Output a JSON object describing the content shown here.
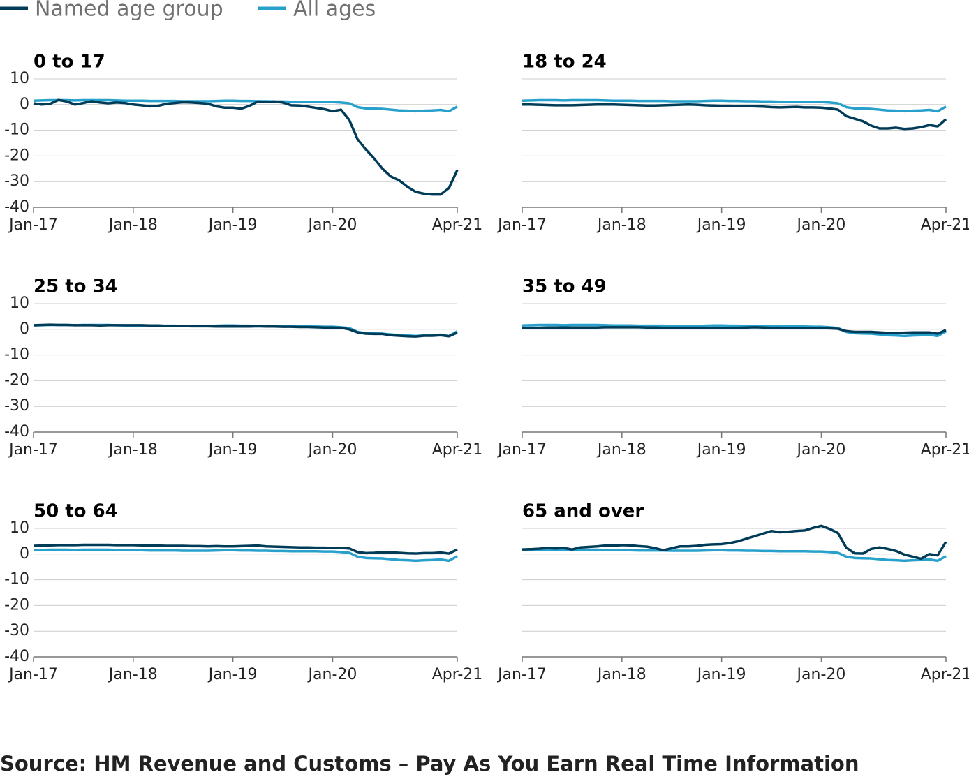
{
  "source": "Source: HM Revenue and Customs – Pay As You Earn Real Time Information",
  "chart_data": [
    {
      "type": "line",
      "title": "0 to 17",
      "ytick_labels": true,
      "categories": [
        "Jan-17",
        null,
        null,
        null,
        null,
        null,
        null,
        null,
        null,
        null,
        null,
        null,
        "Jan-18",
        null,
        null,
        null,
        null,
        null,
        null,
        null,
        null,
        null,
        null,
        null,
        "Jan-19",
        null,
        null,
        null,
        null,
        null,
        null,
        null,
        null,
        null,
        null,
        null,
        "Jan-20",
        null,
        null,
        null,
        null,
        null,
        null,
        null,
        null,
        null,
        null,
        null,
        null,
        null,
        null,
        "Apr-21"
      ],
      "ylim": [
        -40,
        10
      ],
      "yticks": [
        -40,
        -30,
        -20,
        -10,
        0,
        10
      ],
      "grid": true,
      "series": [
        {
          "name": "Named age group",
          "color": "#003c57",
          "values": [
            0.5,
            0,
            0.3,
            1.8,
            1.2,
            0,
            0.6,
            1.3,
            0.8,
            0.5,
            0.8,
            0.6,
            0,
            -0.3,
            -0.7,
            -0.5,
            0.3,
            0.6,
            0.9,
            0.8,
            0.6,
            0.3,
            -0.7,
            -1.2,
            -1.2,
            -1.6,
            -0.5,
            1.2,
            1.0,
            1.2,
            0.8,
            -0.3,
            -0.4,
            -0.8,
            -1.3,
            -1.8,
            -2.6,
            -2.0,
            -6,
            -13.5,
            -17.5,
            -21,
            -25,
            -28,
            -29.5,
            -32,
            -34,
            -34.7,
            -35,
            -35,
            -32.5,
            -25.5
          ]
        },
        {
          "name": "All ages",
          "color": "#27a0cc",
          "values": [
            1.5,
            1.6,
            1.7,
            1.7,
            1.7,
            1.6,
            1.7,
            1.7,
            1.7,
            1.7,
            1.6,
            1.5,
            1.5,
            1.5,
            1.4,
            1.4,
            1.4,
            1.4,
            1.3,
            1.3,
            1.3,
            1.3,
            1.4,
            1.5,
            1.5,
            1.4,
            1.4,
            1.3,
            1.3,
            1.2,
            1.2,
            1.1,
            1.1,
            1.1,
            1.1,
            1.0,
            1.0,
            0.8,
            0.5,
            -1,
            -1.5,
            -1.6,
            -1.7,
            -2,
            -2.3,
            -2.4,
            -2.6,
            -2.4,
            -2.3,
            -2.1,
            -2.6,
            -0.8
          ]
        }
      ]
    },
    {
      "type": "line",
      "title": "18 to 24",
      "ytick_labels": false,
      "categories": [
        "Jan-17",
        null,
        null,
        null,
        null,
        null,
        null,
        null,
        null,
        null,
        null,
        null,
        "Jan-18",
        null,
        null,
        null,
        null,
        null,
        null,
        null,
        null,
        null,
        null,
        null,
        "Jan-19",
        null,
        null,
        null,
        null,
        null,
        null,
        null,
        null,
        null,
        null,
        null,
        "Jan-20",
        null,
        null,
        null,
        null,
        null,
        null,
        null,
        null,
        null,
        null,
        null,
        null,
        null,
        null,
        "Apr-21"
      ],
      "ylim": [
        -40,
        10
      ],
      "yticks": [
        -40,
        -30,
        -20,
        -10,
        0,
        10
      ],
      "grid": true,
      "series": [
        {
          "name": "Named age group",
          "color": "#003c57",
          "values": [
            0,
            0,
            -0.1,
            -0.2,
            -0.3,
            -0.3,
            -0.3,
            -0.2,
            -0.1,
            0,
            0,
            0,
            -0.1,
            -0.2,
            -0.3,
            -0.4,
            -0.4,
            -0.3,
            -0.2,
            -0.1,
            0,
            -0.1,
            -0.3,
            -0.4,
            -0.5,
            -0.5,
            -0.6,
            -0.6,
            -0.7,
            -0.8,
            -1.0,
            -1.1,
            -1.0,
            -0.9,
            -1.1,
            -1.1,
            -1.2,
            -1.5,
            -2,
            -4.5,
            -5.5,
            -6.5,
            -8.2,
            -9.3,
            -9.3,
            -9,
            -9.5,
            -9.3,
            -8.8,
            -8,
            -8.5,
            -5.7
          ]
        },
        {
          "name": "All ages",
          "color": "#27a0cc",
          "values": [
            1.5,
            1.6,
            1.7,
            1.7,
            1.7,
            1.6,
            1.7,
            1.7,
            1.7,
            1.7,
            1.6,
            1.5,
            1.5,
            1.5,
            1.4,
            1.4,
            1.4,
            1.4,
            1.3,
            1.3,
            1.3,
            1.3,
            1.4,
            1.5,
            1.5,
            1.4,
            1.4,
            1.3,
            1.3,
            1.2,
            1.2,
            1.1,
            1.1,
            1.1,
            1.1,
            1.0,
            1.0,
            0.8,
            0.5,
            -1,
            -1.5,
            -1.6,
            -1.7,
            -2,
            -2.3,
            -2.4,
            -2.6,
            -2.4,
            -2.3,
            -2.1,
            -2.6,
            -0.8
          ]
        }
      ]
    },
    {
      "type": "line",
      "title": "25 to 34",
      "ytick_labels": true,
      "categories": [
        "Jan-17",
        null,
        null,
        null,
        null,
        null,
        null,
        null,
        null,
        null,
        null,
        null,
        "Jan-18",
        null,
        null,
        null,
        null,
        null,
        null,
        null,
        null,
        null,
        null,
        null,
        "Jan-19",
        null,
        null,
        null,
        null,
        null,
        null,
        null,
        null,
        null,
        null,
        null,
        "Jan-20",
        null,
        null,
        null,
        null,
        null,
        null,
        null,
        null,
        null,
        null,
        null,
        null,
        null,
        null,
        "Apr-21"
      ],
      "ylim": [
        -40,
        10
      ],
      "yticks": [
        -40,
        -30,
        -20,
        -10,
        0,
        10
      ],
      "grid": true,
      "series": [
        {
          "name": "Named age group",
          "color": "#003c57",
          "values": [
            1.6,
            1.7,
            1.8,
            1.7,
            1.7,
            1.6,
            1.6,
            1.6,
            1.5,
            1.6,
            1.6,
            1.6,
            1.6,
            1.6,
            1.5,
            1.5,
            1.3,
            1.3,
            1.3,
            1.2,
            1.2,
            1.2,
            1.1,
            1.1,
            1.1,
            1.1,
            1.1,
            1.2,
            1.1,
            1.1,
            1.0,
            1.0,
            0.9,
            0.9,
            0.8,
            0.7,
            0.7,
            0.6,
            0,
            -1.2,
            -1.7,
            -1.8,
            -1.8,
            -2.3,
            -2.5,
            -2.7,
            -2.8,
            -2.5,
            -2.5,
            -2.3,
            -2.7,
            -1.3
          ]
        },
        {
          "name": "All ages",
          "color": "#27a0cc",
          "values": [
            1.5,
            1.6,
            1.7,
            1.7,
            1.7,
            1.6,
            1.7,
            1.7,
            1.7,
            1.7,
            1.6,
            1.5,
            1.5,
            1.5,
            1.4,
            1.4,
            1.4,
            1.4,
            1.3,
            1.3,
            1.3,
            1.3,
            1.4,
            1.5,
            1.5,
            1.4,
            1.4,
            1.3,
            1.3,
            1.2,
            1.2,
            1.1,
            1.1,
            1.1,
            1.1,
            1.0,
            1.0,
            0.8,
            0.5,
            -1,
            -1.5,
            -1.6,
            -1.7,
            -2,
            -2.3,
            -2.4,
            -2.6,
            -2.4,
            -2.3,
            -2.1,
            -2.6,
            -0.8
          ]
        }
      ]
    },
    {
      "type": "line",
      "title": "35 to 49",
      "ytick_labels": false,
      "categories": [
        "Jan-17",
        null,
        null,
        null,
        null,
        null,
        null,
        null,
        null,
        null,
        null,
        null,
        "Jan-18",
        null,
        null,
        null,
        null,
        null,
        null,
        null,
        null,
        null,
        null,
        null,
        "Jan-19",
        null,
        null,
        null,
        null,
        null,
        null,
        null,
        null,
        null,
        null,
        null,
        "Jan-20",
        null,
        null,
        null,
        null,
        null,
        null,
        null,
        null,
        null,
        null,
        null,
        null,
        null,
        null,
        "Apr-21"
      ],
      "ylim": [
        -40,
        10
      ],
      "yticks": [
        -40,
        -30,
        -20,
        -10,
        0,
        10
      ],
      "grid": true,
      "series": [
        {
          "name": "Named age group",
          "color": "#003c57",
          "values": [
            0.5,
            0.6,
            0.6,
            0.7,
            0.7,
            0.7,
            0.7,
            0.7,
            0.7,
            0.7,
            0.8,
            0.8,
            0.8,
            0.8,
            0.8,
            0.7,
            0.7,
            0.6,
            0.6,
            0.6,
            0.6,
            0.6,
            0.6,
            0.5,
            0.5,
            0.6,
            0.6,
            0.7,
            0.8,
            0.7,
            0.6,
            0.6,
            0.5,
            0.5,
            0.5,
            0.5,
            0.5,
            0.4,
            0.2,
            -0.7,
            -1.0,
            -1.0,
            -1.0,
            -1.2,
            -1.4,
            -1.4,
            -1.3,
            -1.2,
            -1.2,
            -1.2,
            -1.7,
            -0.3
          ]
        },
        {
          "name": "All ages",
          "color": "#27a0cc",
          "values": [
            1.5,
            1.6,
            1.7,
            1.7,
            1.7,
            1.6,
            1.7,
            1.7,
            1.7,
            1.7,
            1.6,
            1.5,
            1.5,
            1.5,
            1.4,
            1.4,
            1.4,
            1.4,
            1.3,
            1.3,
            1.3,
            1.3,
            1.4,
            1.5,
            1.5,
            1.4,
            1.4,
            1.3,
            1.3,
            1.2,
            1.2,
            1.1,
            1.1,
            1.1,
            1.1,
            1.0,
            1.0,
            0.8,
            0.5,
            -1,
            -1.5,
            -1.6,
            -1.7,
            -2,
            -2.3,
            -2.4,
            -2.6,
            -2.4,
            -2.3,
            -2.1,
            -2.6,
            -0.8
          ]
        }
      ]
    },
    {
      "type": "line",
      "title": "50 to 64",
      "ytick_labels": true,
      "categories": [
        "Jan-17",
        null,
        null,
        null,
        null,
        null,
        null,
        null,
        null,
        null,
        null,
        null,
        "Jan-18",
        null,
        null,
        null,
        null,
        null,
        null,
        null,
        null,
        null,
        null,
        null,
        "Jan-19",
        null,
        null,
        null,
        null,
        null,
        null,
        null,
        null,
        null,
        null,
        null,
        "Jan-20",
        null,
        null,
        null,
        null,
        null,
        null,
        null,
        null,
        null,
        null,
        null,
        null,
        null,
        null,
        "Apr-21"
      ],
      "ylim": [
        -40,
        10
      ],
      "yticks": [
        -40,
        -30,
        -20,
        -10,
        0,
        10
      ],
      "grid": true,
      "series": [
        {
          "name": "Named age group",
          "color": "#003c57",
          "values": [
            3.2,
            3.3,
            3.4,
            3.5,
            3.5,
            3.5,
            3.6,
            3.6,
            3.6,
            3.6,
            3.5,
            3.5,
            3.5,
            3.4,
            3.3,
            3.3,
            3.2,
            3.2,
            3.2,
            3.1,
            3.1,
            3.0,
            3.1,
            3.0,
            3.0,
            3.1,
            3.2,
            3.3,
            3.0,
            2.9,
            2.8,
            2.7,
            2.6,
            2.6,
            2.5,
            2.5,
            2.4,
            2.4,
            2.2,
            0.8,
            0.4,
            0.5,
            0.7,
            0.7,
            0.5,
            0.3,
            0.2,
            0.4,
            0.4,
            0.6,
            0.2,
            1.8
          ]
        },
        {
          "name": "All ages",
          "color": "#27a0cc",
          "values": [
            1.5,
            1.6,
            1.7,
            1.7,
            1.7,
            1.6,
            1.7,
            1.7,
            1.7,
            1.7,
            1.6,
            1.5,
            1.5,
            1.5,
            1.4,
            1.4,
            1.4,
            1.4,
            1.3,
            1.3,
            1.3,
            1.3,
            1.4,
            1.5,
            1.5,
            1.4,
            1.4,
            1.3,
            1.3,
            1.2,
            1.2,
            1.1,
            1.1,
            1.1,
            1.1,
            1.0,
            1.0,
            0.8,
            0.5,
            -1,
            -1.5,
            -1.6,
            -1.7,
            -2,
            -2.3,
            -2.4,
            -2.6,
            -2.4,
            -2.3,
            -2.1,
            -2.6,
            -0.8
          ]
        }
      ]
    },
    {
      "type": "line",
      "title": "65 and over",
      "ytick_labels": false,
      "categories": [
        "Jan-17",
        null,
        null,
        null,
        null,
        null,
        null,
        null,
        null,
        null,
        null,
        null,
        "Jan-18",
        null,
        null,
        null,
        null,
        null,
        null,
        null,
        null,
        null,
        null,
        null,
        "Jan-19",
        null,
        null,
        null,
        null,
        null,
        null,
        null,
        null,
        null,
        null,
        null,
        "Jan-20",
        null,
        null,
        null,
        null,
        null,
        null,
        null,
        null,
        null,
        null,
        null,
        null,
        null,
        null,
        "Apr-21"
      ],
      "ylim": [
        -40,
        10
      ],
      "yticks": [
        -40,
        -30,
        -20,
        -10,
        0,
        10
      ],
      "grid": true,
      "series": [
        {
          "name": "Named age group",
          "color": "#003c57",
          "values": [
            1.8,
            1.9,
            2.1,
            2.4,
            2.2,
            2.4,
            1.8,
            2.6,
            2.8,
            3.0,
            3.3,
            3.3,
            3.5,
            3.4,
            3.1,
            2.9,
            2.3,
            1.5,
            2.3,
            3.0,
            3.0,
            3.2,
            3.6,
            3.8,
            3.9,
            4.3,
            5.0,
            6.0,
            7.0,
            8.0,
            9.0,
            8.5,
            8.7,
            9.0,
            9.2,
            10.2,
            11.0,
            9.8,
            8.2,
            2.5,
            0.3,
            0.2,
            2.0,
            2.6,
            2.0,
            1.2,
            -0.2,
            -1.0,
            -1.8,
            0,
            -0.5,
            4.8
          ]
        },
        {
          "name": "All ages",
          "color": "#27a0cc",
          "values": [
            1.5,
            1.6,
            1.7,
            1.7,
            1.7,
            1.6,
            1.7,
            1.7,
            1.7,
            1.7,
            1.6,
            1.5,
            1.5,
            1.5,
            1.4,
            1.4,
            1.4,
            1.4,
            1.3,
            1.3,
            1.3,
            1.3,
            1.4,
            1.5,
            1.5,
            1.4,
            1.4,
            1.3,
            1.3,
            1.2,
            1.2,
            1.1,
            1.1,
            1.1,
            1.1,
            1.0,
            1.0,
            0.8,
            0.5,
            -1,
            -1.5,
            -1.6,
            -1.7,
            -2,
            -2.3,
            -2.4,
            -2.6,
            -2.4,
            -2.3,
            -2.1,
            -2.6,
            -0.8
          ]
        }
      ]
    }
  ]
}
